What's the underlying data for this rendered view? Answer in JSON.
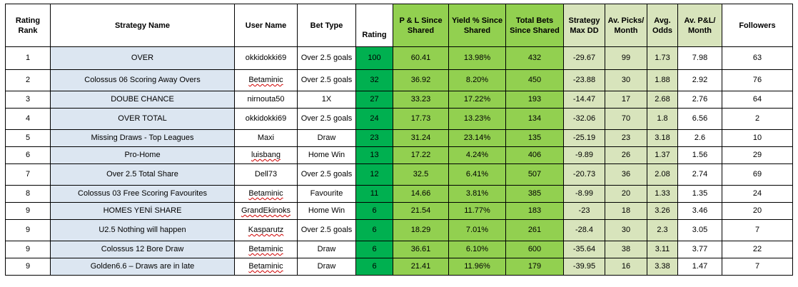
{
  "headers": {
    "rating_rank": "Rating Rank",
    "strategy_name": "Strategy Name",
    "user_name": "User Name",
    "bet_type": "Bet Type",
    "rating": "Rating",
    "pl_since_shared": "P & L Since Shared",
    "yield_since_shared": "Yield % Since Shared",
    "total_bets_since_shared": "Total Bets Since Shared",
    "strategy_max_dd": "Strategy Max DD",
    "av_picks_month": "Av. Picks/ Month",
    "avg_odds": "Avg. Odds",
    "av_pl_month": "Av. P&L/ Month",
    "followers": "Followers"
  },
  "rows": [
    {
      "rank": "1",
      "name": "OVER",
      "user": "okkidokki69",
      "bet": "Over 2.5 goals",
      "rating": "100",
      "pl": "60.41",
      "yield": "13.98%",
      "bets": "432",
      "maxdd": "-29.67",
      "picks": "99",
      "odds": "1.73",
      "plm": "7.98",
      "followers": "63"
    },
    {
      "rank": "2",
      "name": "Colossus 06 Scoring Away Overs",
      "user": "Betaminic",
      "bet": "Over 2.5 goals",
      "rating": "32",
      "pl": "36.92",
      "yield": "8.20%",
      "bets": "450",
      "maxdd": "-23.88",
      "picks": "30",
      "odds": "1.88",
      "plm": "2.92",
      "followers": "76"
    },
    {
      "rank": "3",
      "name": "DOUBE CHANCE",
      "user": "nirnouta50",
      "bet": "1X",
      "rating": "27",
      "pl": "33.23",
      "yield": "17.22%",
      "bets": "193",
      "maxdd": "-14.47",
      "picks": "17",
      "odds": "2.68",
      "plm": "2.76",
      "followers": "64"
    },
    {
      "rank": "4",
      "name": "OVER TOTAL",
      "user": "okkidokki69",
      "bet": "Over 2.5 goals",
      "rating": "24",
      "pl": "17.73",
      "yield": "13.23%",
      "bets": "134",
      "maxdd": "-32.06",
      "picks": "70",
      "odds": "1.8",
      "plm": "6.56",
      "followers": "2"
    },
    {
      "rank": "5",
      "name": "Missing Draws - Top Leagues",
      "user": "Maxi",
      "bet": "Draw",
      "rating": "23",
      "pl": "31.24",
      "yield": "23.14%",
      "bets": "135",
      "maxdd": "-25.19",
      "picks": "23",
      "odds": "3.18",
      "plm": "2.6",
      "followers": "10"
    },
    {
      "rank": "6",
      "name": "Pro-Home",
      "user": "luisbang",
      "bet": "Home Win",
      "rating": "13",
      "pl": "17.22",
      "yield": "4.24%",
      "bets": "406",
      "maxdd": "-9.89",
      "picks": "26",
      "odds": "1.37",
      "plm": "1.56",
      "followers": "29"
    },
    {
      "rank": "7",
      "name": "Over 2.5 Total Share",
      "user": "Dell73",
      "bet": "Over 2.5 goals",
      "rating": "12",
      "pl": "32.5",
      "yield": "6.41%",
      "bets": "507",
      "maxdd": "-20.73",
      "picks": "36",
      "odds": "2.08",
      "plm": "2.74",
      "followers": "69"
    },
    {
      "rank": "8",
      "name": "Colossus 03 Free Scoring Favourites",
      "user": "Betaminic",
      "bet": "Favourite",
      "rating": "11",
      "pl": "14.66",
      "yield": "3.81%",
      "bets": "385",
      "maxdd": "-8.99",
      "picks": "20",
      "odds": "1.33",
      "plm": "1.35",
      "followers": "24"
    },
    {
      "rank": "9",
      "name": "HOMES YENİ SHARE",
      "user": "GrandEkinoks",
      "bet": "Home Win",
      "rating": "6",
      "pl": "21.54",
      "yield": "11.77%",
      "bets": "183",
      "maxdd": "-23",
      "picks": "18",
      "odds": "3.26",
      "plm": "3.46",
      "followers": "20"
    },
    {
      "rank": "9",
      "name": "U2.5 Nothing will happen",
      "user": "Kasparutz",
      "bet": "Over 2.5 goals",
      "rating": "6",
      "pl": "18.29",
      "yield": "7.01%",
      "bets": "261",
      "maxdd": "-28.4",
      "picks": "30",
      "odds": "2.3",
      "plm": "3.05",
      "followers": "7"
    },
    {
      "rank": "9",
      "name": "Colossus 12 Bore Draw",
      "user": "Betaminic",
      "bet": "Draw",
      "rating": "6",
      "pl": "36.61",
      "yield": "6.10%",
      "bets": "600",
      "maxdd": "-35.64",
      "picks": "38",
      "odds": "3.11",
      "plm": "3.77",
      "followers": "22"
    },
    {
      "rank": "9",
      "name": "Golden6.6 – Draws are in late",
      "user": "Betaminic",
      "bet": "Draw",
      "rating": "6",
      "pl": "21.41",
      "yield": "11.96%",
      "bets": "179",
      "maxdd": "-39.95",
      "picks": "16",
      "odds": "3.38",
      "plm": "1.47",
      "followers": "7"
    }
  ],
  "colors": {
    "name_bg": "#dce6f1",
    "rating_bg": "#00b050",
    "pl_yield_bets_bg": "#92d050",
    "stats_bg": "#d8e4bc",
    "spellcheck_underline": "#d00000"
  }
}
